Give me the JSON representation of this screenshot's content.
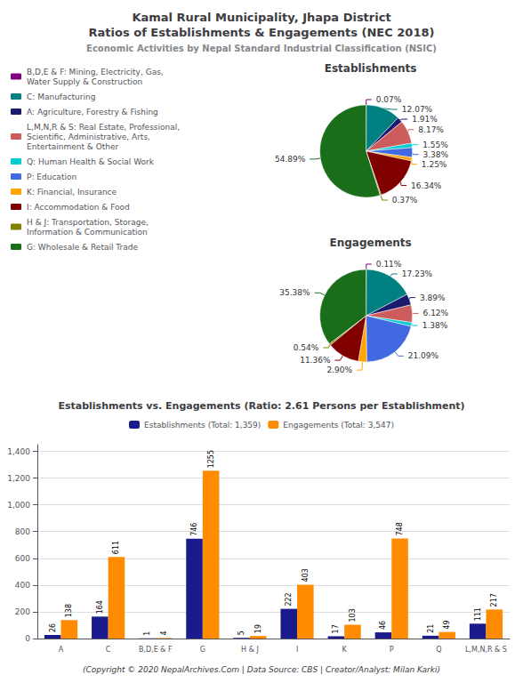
{
  "title": "Kamal Rural Municipality, Jhapa District\nRatios of Establishments & Engagements (NEC 2018)",
  "subtitle": "Economic Activities by Nepal Standard Industrial Classification (NSIC)",
  "annotations": [
    "(Copyright © 2020 NepalArchives.Com | Data Source: CBS | Creator/Analyst: Milan Karki)"
  ],
  "chart_data": [
    {
      "type": "pie",
      "title": "Establishments",
      "categories": [
        "B,D,E & F: Mining, Electricity, Gas,\nWater Supply & Construction",
        "C: Manufacturing",
        "A: Agriculture, Forestry & Fishing",
        "L,M,N,R & S: Real Estate, Professional,\nScientific, Administrative, Arts,\nEntertainment & Other",
        "Q: Human Health & Social Work",
        "P: Education",
        "K: Financial, Insurance",
        "I: Accommodation & Food",
        "H & J: Transportation, Storage,\nInformation & Communication",
        "G: Wholesale & Retail Trade"
      ],
      "values": [
        0.07,
        12.07,
        1.91,
        8.17,
        1.55,
        3.38,
        1.25,
        16.34,
        0.37,
        54.89
      ],
      "value_labels": [
        "0.07%",
        "12.07%",
        "1.91%",
        "8.17%",
        "1.55%",
        "3.38%",
        "1.25%",
        "16.34%",
        "0.37%",
        "54.89%"
      ],
      "colors": [
        "#800080",
        "#008080",
        "#1a1a6e",
        "#CD5C5C",
        "#00CED1",
        "#4169E1",
        "#FFA500",
        "#800000",
        "#808000",
        "#1a6e1a"
      ],
      "data_labels": true,
      "legend": "left"
    },
    {
      "type": "pie",
      "title": "Engagements",
      "categories": [
        "B,D,E & F: Mining, Electricity, Gas,\nWater Supply & Construction",
        "C: Manufacturing",
        "A: Agriculture, Forestry & Fishing",
        "L,M,N,R & S: Real Estate, Professional,\nScientific, Administrative, Arts,\nEntertainment & Other",
        "Q: Human Health & Social Work",
        "P: Education",
        "K: Financial, Insurance",
        "I: Accommodation & Food",
        "H & J: Transportation, Storage,\nInformation & Communication",
        "G: Wholesale & Retail Trade"
      ],
      "values": [
        0.11,
        17.23,
        3.89,
        6.12,
        1.38,
        21.09,
        2.9,
        11.36,
        0.54,
        35.38
      ],
      "value_labels": [
        "0.11%",
        "17.23%",
        "3.89%",
        "6.12%",
        "1.38%",
        "21.09%",
        "2.90%",
        "11.36%",
        "0.54%",
        "35.38%"
      ],
      "colors": [
        "#800080",
        "#008080",
        "#1a1a6e",
        "#CD5C5C",
        "#00CED1",
        "#4169E1",
        "#FFA500",
        "#800000",
        "#808000",
        "#1a6e1a"
      ],
      "data_labels": true,
      "legend": "left"
    },
    {
      "type": "bar",
      "title": "Establishments vs. Engagements (Ratio: 2.61 Persons per Establishment)",
      "categories": [
        "A",
        "C",
        "B,D,E & F",
        "G",
        "H & J",
        "I",
        "K",
        "P",
        "Q",
        "L,M,N,R & S"
      ],
      "series": [
        {
          "name": "Establishments (Total: 1,359)",
          "color": "#1a1a8c",
          "values": [
            26,
            164,
            1,
            746,
            5,
            222,
            17,
            46,
            21,
            111
          ]
        },
        {
          "name": "Engagements (Total: 3,547)",
          "color": "#FF8C00",
          "values": [
            138,
            611,
            4,
            1255,
            19,
            403,
            103,
            748,
            49,
            217
          ]
        }
      ],
      "ylim": [
        0,
        1450
      ],
      "yticks": [
        0,
        200,
        400,
        600,
        800,
        1000,
        1200,
        1400
      ],
      "grid": true,
      "data_labels": true,
      "legend": "top"
    }
  ]
}
